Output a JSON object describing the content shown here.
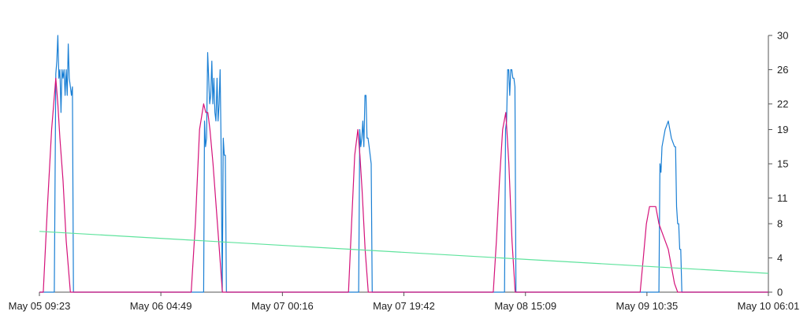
{
  "chart_data": {
    "type": "line",
    "grid": false,
    "legend": "none",
    "x_tick_labels": [
      "May 05 09:23",
      "May 06 04:49",
      "May 07 00:16",
      "May 07 19:42",
      "May 08 15:09",
      "May 09 10:35",
      "May 10 06:01"
    ],
    "x_range": [
      "May 05 09:23",
      "May 10 06:01"
    ],
    "y_ticks": [
      0,
      4,
      8,
      11,
      15,
      19,
      22,
      26,
      30
    ],
    "y_range": [
      0,
      30
    ],
    "y_axis_position": "right",
    "series": [
      {
        "color": "#1a7fd4",
        "x": [
          "May 05 09:23",
          "May 05 11:46",
          "May 05 12:00",
          "May 05 12:10",
          "May 05 12:20",
          "May 05 12:30",
          "May 05 12:40",
          "May 05 12:50",
          "May 05 13:00",
          "May 05 13:10",
          "May 05 13:20",
          "May 05 13:30",
          "May 05 13:40",
          "May 05 13:50",
          "May 05 14:00",
          "May 05 14:10",
          "May 05 14:20",
          "May 05 14:30",
          "May 05 14:40",
          "May 05 14:50",
          "May 05 15:00",
          "May 05 15:10",
          "May 05 15:20",
          "May 05 15:30",
          "May 06 11:40",
          "May 06 11:48",
          "May 06 11:58",
          "May 06 12:08",
          "May 06 12:18",
          "May 06 12:28",
          "May 06 12:38",
          "May 06 12:48",
          "May 06 12:58",
          "May 06 13:08",
          "May 06 13:18",
          "May 06 13:28",
          "May 06 13:38",
          "May 06 13:48",
          "May 06 13:58",
          "May 06 14:08",
          "May 06 14:18",
          "May 06 14:28",
          "May 06 14:38",
          "May 06 14:48",
          "May 06 14:58",
          "May 06 15:08",
          "May 06 15:18",
          "May 06 15:28",
          "May 06 15:38",
          "May 06 15:48",
          "May 06 15:58",
          "May 06 16:08",
          "May 06 16:18",
          "May 06 16:28",
          "May 06 16:38",
          "May 07 12:28",
          "May 07 12:38",
          "May 07 12:48",
          "May 07 12:58",
          "May 07 13:08",
          "May 07 13:18",
          "May 07 13:28",
          "May 07 13:38",
          "May 07 13:48",
          "May 07 13:58",
          "May 07 14:08",
          "May 07 14:18",
          "May 07 14:28",
          "May 07 14:38",
          "May 07 14:48",
          "May 07 14:58",
          "May 08 11:48",
          "May 08 11:58",
          "May 08 12:08",
          "May 08 12:18",
          "May 08 12:28",
          "May 08 12:38",
          "May 08 12:48",
          "May 08 12:58",
          "May 08 13:08",
          "May 08 13:18",
          "May 08 13:28",
          "May 08 13:38",
          "May 08 13:48",
          "May 08 13:58",
          "May 09 10:30",
          "May 09 12:20",
          "May 09 12:30",
          "May 09 12:40",
          "May 09 12:50",
          "May 09 13:00",
          "May 09 13:30",
          "May 09 14:00",
          "May 09 14:30",
          "May 09 15:00",
          "May 09 15:10",
          "May 09 15:20",
          "May 09 15:30",
          "May 09 15:40",
          "May 09 15:50",
          "May 09 16:00",
          "May 09 16:10",
          "May 09 16:20",
          "May 09 16:30",
          "May 10 06:01"
        ],
        "y": [
          0,
          0,
          25.5,
          27,
          30,
          25,
          26,
          21,
          26,
          25,
          26,
          23,
          26,
          23,
          29,
          25,
          24,
          23,
          24,
          0,
          0,
          0,
          0,
          0,
          0,
          20,
          17,
          18,
          28,
          25,
          22,
          23,
          27,
          22,
          25,
          21,
          20,
          25,
          20,
          22,
          26,
          16,
          0,
          18,
          16,
          16,
          0,
          0,
          0,
          0,
          0,
          0,
          0,
          0,
          0,
          0,
          19,
          17,
          18,
          20,
          17,
          23,
          23,
          18,
          18,
          17,
          16,
          15,
          0,
          0,
          0,
          0,
          19,
          20,
          26,
          26,
          23,
          26,
          26,
          25,
          25,
          24,
          0,
          0,
          0,
          0,
          0,
          0,
          15,
          14,
          17,
          19,
          20,
          18,
          17,
          17,
          10,
          8,
          8,
          5,
          5,
          0,
          0,
          0,
          0
        ]
      },
      {
        "color": "#d4127a",
        "x": [
          "May 05 09:23",
          "May 05 10:00",
          "May 05 10:40",
          "May 05 11:20",
          "May 05 12:00",
          "May 05 12:20",
          "May 05 12:40",
          "May 05 13:10",
          "May 05 13:40",
          "May 05 14:20",
          "May 05 15:00",
          "May 06 09:40",
          "May 06 10:20",
          "May 06 11:00",
          "May 06 11:40",
          "May 06 12:00",
          "May 06 12:20",
          "May 06 12:40",
          "May 06 13:10",
          "May 06 13:40",
          "May 06 14:10",
          "May 06 14:40",
          "May 06 15:10",
          "May 06 15:40",
          "May 06 16:20",
          "May 07 10:50",
          "May 07 11:20",
          "May 07 11:50",
          "May 07 12:20",
          "May 07 12:40",
          "May 07 13:00",
          "May 07 13:30",
          "May 07 14:00",
          "May 07 14:30",
          "May 08 10:00",
          "May 08 10:30",
          "May 08 11:00",
          "May 08 11:30",
          "May 08 12:00",
          "May 08 12:30",
          "May 08 13:00",
          "May 08 13:30",
          "May 08 14:00",
          "May 08 14:30",
          "May 08 15:00",
          "May 09 09:30",
          "May 09 10:00",
          "May 09 10:30",
          "May 09 11:00",
          "May 09 11:30",
          "May 09 12:00",
          "May 09 12:30",
          "May 09 13:00",
          "May 09 13:30",
          "May 09 14:00",
          "May 09 14:30",
          "May 09 15:00",
          "May 09 15:30",
          "May 09 16:00",
          "May 09 16:30",
          "May 10 06:01"
        ],
        "y": [
          0,
          0,
          10,
          19,
          25,
          22,
          18,
          13,
          6,
          0,
          0,
          0,
          8,
          19,
          22,
          21,
          21,
          19,
          15,
          10,
          5,
          0,
          0,
          0,
          0,
          0,
          8,
          16,
          19,
          16,
          12,
          5,
          0,
          0,
          0,
          6,
          13,
          19,
          21,
          15,
          6,
          0,
          0,
          0,
          0,
          0,
          4,
          8,
          10,
          10,
          10,
          8,
          7,
          6,
          5,
          3,
          1,
          0,
          0,
          0,
          0
        ]
      },
      {
        "color": "#5fe39d",
        "x": [
          "May 05 09:23",
          "May 10 06:01"
        ],
        "y": [
          7.1,
          2.2
        ]
      }
    ]
  }
}
